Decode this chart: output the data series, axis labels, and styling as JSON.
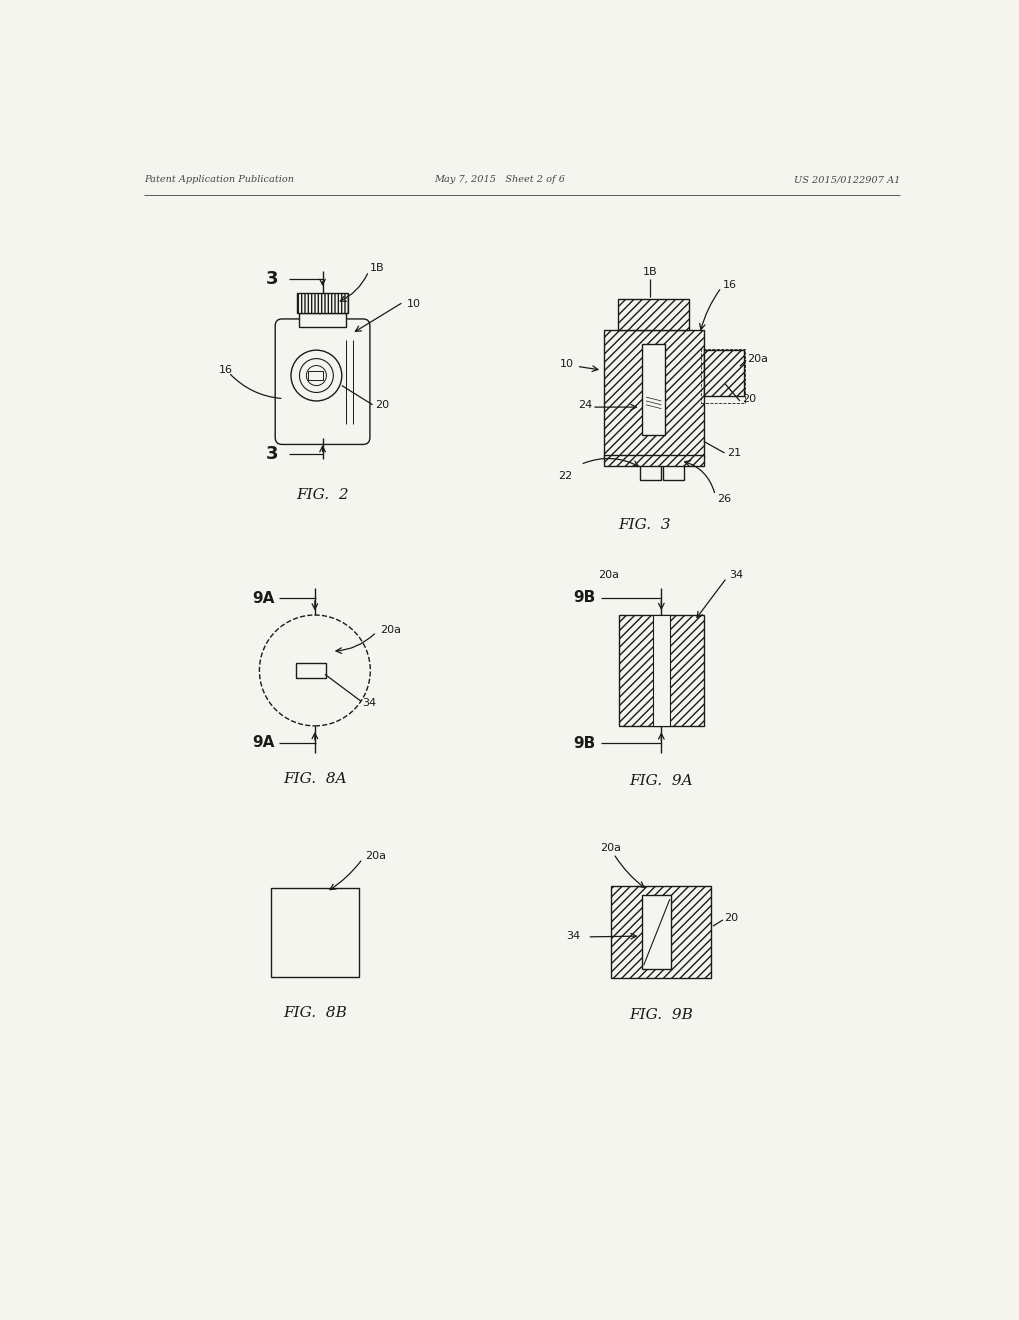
{
  "header_left": "Patent Application Publication",
  "header_mid": "May 7, 2015   Sheet 2 of 6",
  "header_right": "US 2015/0122907 A1",
  "bg_color": "#f5f5f0",
  "line_color": "#1a1a1a",
  "fig2_label": "FIG.  2",
  "fig3_label": "FIG.  3",
  "fig8a_label": "FIG.  8A",
  "fig9a_label": "FIG.  9A",
  "fig8b_label": "FIG.  8B",
  "fig9b_label": "FIG.  9B"
}
